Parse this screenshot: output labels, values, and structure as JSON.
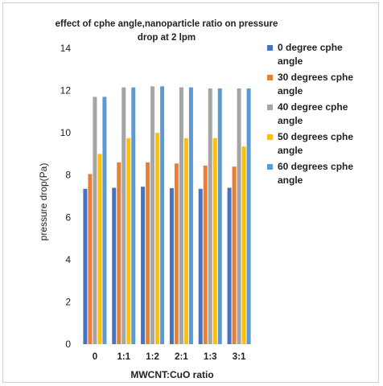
{
  "chart_data": {
    "type": "bar",
    "title": "effect of cphe angle,nanoparticle ratio on pressure drop at 2 lpm",
    "title_lines": [
      "effect of cphe angle,nanoparticle ratio on pressure",
      "drop at 2 lpm"
    ],
    "xlabel": "MWCNT:CuO ratio",
    "ylabel": "pressure drop(Pa)",
    "ylim": [
      0,
      14
    ],
    "yticks": [
      0,
      2,
      4,
      6,
      8,
      10,
      12,
      14
    ],
    "grid": false,
    "legend_position": "right",
    "categories": [
      "0",
      "1:1",
      "1:2",
      "2:1",
      "1:3",
      "3:1"
    ],
    "series": [
      {
        "name": "0 degree cphe angle",
        "name_lines": [
          "0 degree cphe",
          "angle"
        ],
        "color": "#4472c4",
        "values": [
          7.35,
          7.4,
          7.45,
          7.38,
          7.35,
          7.4
        ]
      },
      {
        "name": "30 degrees cphe angle",
        "name_lines": [
          "30 degrees cphe",
          "angle"
        ],
        "color": "#ed7d31",
        "values": [
          8.05,
          8.6,
          8.6,
          8.55,
          8.45,
          8.4
        ]
      },
      {
        "name": "40 degree cphe angle",
        "name_lines": [
          "40 degree cphe",
          "angle"
        ],
        "color": "#a5a5a5",
        "values": [
          11.7,
          12.15,
          12.2,
          12.15,
          12.1,
          12.1
        ]
      },
      {
        "name": "50 degrees cphe angle",
        "name_lines": [
          "50 degrees cphe",
          "angle"
        ],
        "color": "#ffc000",
        "values": [
          9.0,
          9.75,
          10.0,
          9.75,
          9.75,
          9.35
        ]
      },
      {
        "name": "60 degrees cphe angle",
        "name_lines": [
          "60 degrees cphe",
          "angle"
        ],
        "color": "#5b9bd5",
        "values": [
          11.7,
          12.15,
          12.2,
          12.15,
          12.1,
          12.1
        ]
      }
    ]
  }
}
